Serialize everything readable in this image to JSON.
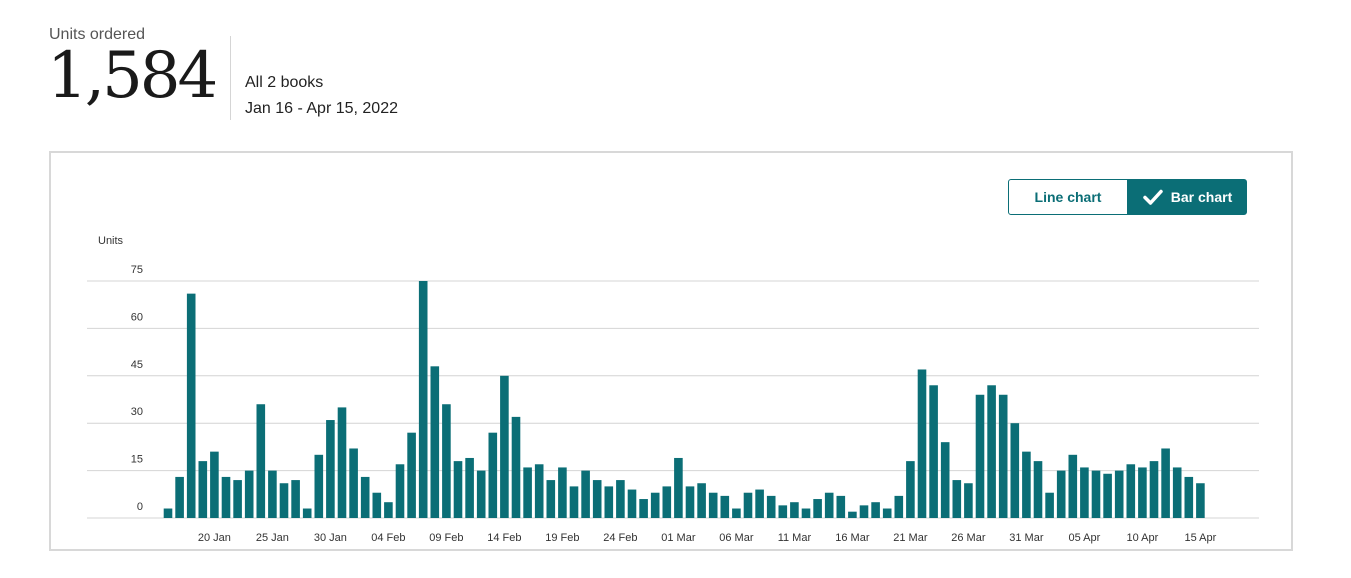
{
  "summary": {
    "label": "Units ordered",
    "value": "1,584",
    "scope": "All 2 books",
    "date_range": "Jan 16 - Apr 15, 2022"
  },
  "toggle": {
    "line_label": "Line chart",
    "bar_label": "Bar chart",
    "selected": "bar"
  },
  "colors": {
    "bar": "#0b6e76",
    "grid": "#d4d4d4",
    "accent": "#0b6e76"
  },
  "chart_data": {
    "type": "bar",
    "ylabel": "Units",
    "ylim": [
      0,
      75
    ],
    "yticks": [
      0,
      15,
      30,
      45,
      60,
      75
    ],
    "grid": true,
    "x_tick_labels": [
      {
        "index": 4,
        "label": "20 Jan"
      },
      {
        "index": 9,
        "label": "25 Jan"
      },
      {
        "index": 14,
        "label": "30 Jan"
      },
      {
        "index": 19,
        "label": "04 Feb"
      },
      {
        "index": 24,
        "label": "09 Feb"
      },
      {
        "index": 29,
        "label": "14 Feb"
      },
      {
        "index": 34,
        "label": "19 Feb"
      },
      {
        "index": 39,
        "label": "24 Feb"
      },
      {
        "index": 44,
        "label": "01 Mar"
      },
      {
        "index": 49,
        "label": "06 Mar"
      },
      {
        "index": 54,
        "label": "11 Mar"
      },
      {
        "index": 59,
        "label": "16 Mar"
      },
      {
        "index": 64,
        "label": "21 Mar"
      },
      {
        "index": 69,
        "label": "26 Mar"
      },
      {
        "index": 74,
        "label": "31 Mar"
      },
      {
        "index": 79,
        "label": "05 Apr"
      },
      {
        "index": 84,
        "label": "10 Apr"
      },
      {
        "index": 89,
        "label": "15 Apr"
      }
    ],
    "values": [
      3,
      13,
      71,
      18,
      21,
      13,
      12,
      15,
      36,
      15,
      11,
      12,
      3,
      20,
      31,
      35,
      22,
      13,
      8,
      5,
      17,
      27,
      75,
      48,
      36,
      18,
      19,
      15,
      27,
      45,
      32,
      16,
      17,
      12,
      16,
      10,
      15,
      12,
      10,
      12,
      9,
      6,
      8,
      10,
      19,
      10,
      11,
      8,
      7,
      3,
      8,
      9,
      7,
      4,
      5,
      3,
      6,
      8,
      7,
      2,
      4,
      5,
      3,
      7,
      18,
      47,
      42,
      24,
      12,
      11,
      39,
      42,
      39,
      30,
      21,
      18,
      8,
      15,
      20,
      16,
      15,
      14,
      15,
      17,
      16,
      18,
      22,
      16,
      13,
      11
    ]
  }
}
